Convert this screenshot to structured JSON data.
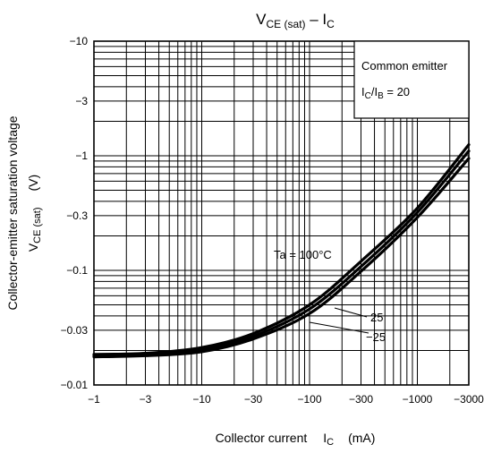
{
  "chart_data": {
    "type": "line",
    "title_main": "V",
    "title_sub1": "CE (sat)",
    "title_mid": " – I",
    "title_sub2": "C",
    "x_axis": {
      "label_main": "Collector current",
      "label_sym": "I",
      "label_sub": "C",
      "label_unit": "(mA)",
      "scale": "log",
      "range": [
        -1,
        -3000
      ],
      "ticks": [
        -1,
        -3,
        -10,
        -30,
        -100,
        -300,
        -1000,
        -3000
      ],
      "tick_labels": [
        "−1",
        "−3",
        "−10",
        "−30",
        "−100",
        "−300",
        "−1000",
        "−3000"
      ]
    },
    "y_axis": {
      "label_line1": "Collector-emitter saturation voltage",
      "label_sym": "V",
      "label_sub": "CE (sat)",
      "label_unit": "(V)",
      "scale": "log",
      "range": [
        -0.01,
        -10
      ],
      "ticks": [
        -0.01,
        -0.03,
        -0.1,
        -0.3,
        -1,
        -3,
        -10
      ],
      "tick_labels": [
        "−0.01",
        "−0.03",
        "−0.1",
        "−0.3",
        "−1",
        "−3",
        "−10"
      ]
    },
    "grid": true,
    "legend_box": {
      "position": "top-right",
      "line1": "Common emitter",
      "line2_sym": "I",
      "line2_sub1": "C",
      "line2_slash": "/I",
      "line2_sub2": "B",
      "line2_rest": " = 20"
    },
    "series": [
      {
        "name": "Ta = 100°C",
        "x": [
          -1,
          -3,
          -10,
          -30,
          -100,
          -300,
          -1000,
          -3000
        ],
        "y": [
          -0.0185,
          -0.0189,
          -0.0212,
          -0.0281,
          -0.05,
          -0.12,
          -0.35,
          -1.25
        ]
      },
      {
        "name": "25",
        "x": [
          -1,
          -3,
          -10,
          -30,
          -100,
          -300,
          -1000,
          -3000
        ],
        "y": [
          -0.018,
          -0.0184,
          -0.0203,
          -0.0265,
          -0.046,
          -0.108,
          -0.32,
          -1.1
        ]
      },
      {
        "name": "−25",
        "x": [
          -1,
          -3,
          -10,
          -30,
          -100,
          -300,
          -1000,
          -3000
        ],
        "y": [
          -0.0176,
          -0.018,
          -0.0195,
          -0.0252,
          -0.042,
          -0.098,
          -0.29,
          -0.95
        ]
      }
    ],
    "series_label_style": "callout-arrows"
  }
}
